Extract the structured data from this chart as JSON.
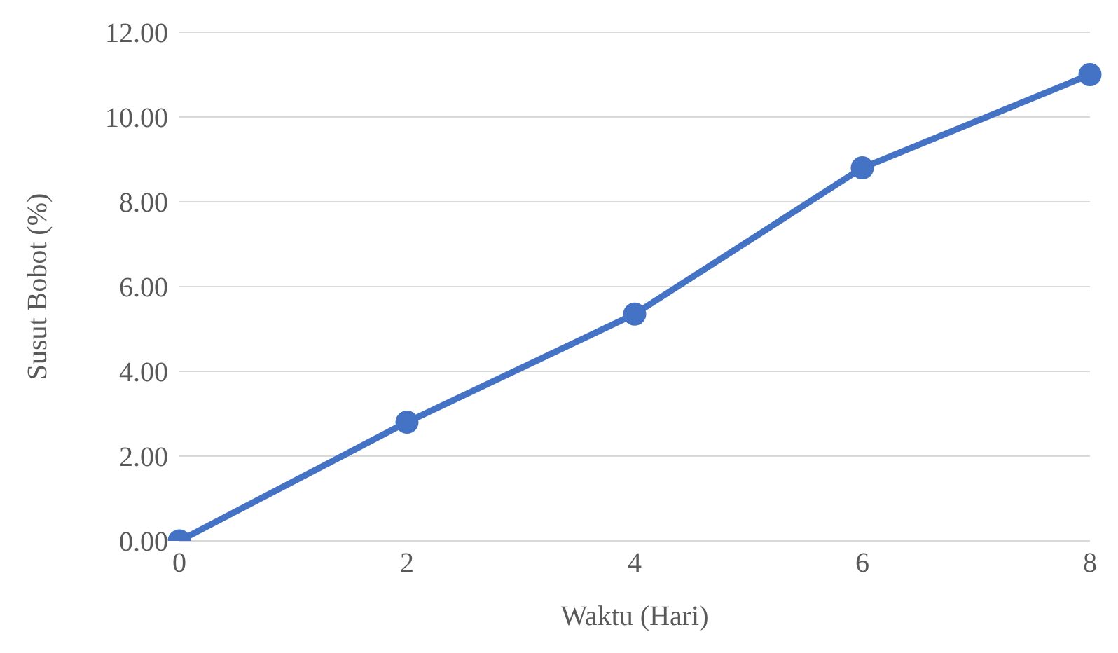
{
  "chart_data": {
    "type": "line",
    "xlabel": "Waktu (Hari)",
    "ylabel": "Susut Bobot (%)",
    "categories": [
      "0",
      "2",
      "4",
      "6",
      "8"
    ],
    "series": [
      {
        "color": "#4472c4",
        "values": [
          0,
          2.8,
          5.35,
          8.8,
          11.0
        ]
      }
    ],
    "ylim": [
      0,
      12
    ],
    "yticks": [
      {
        "value": 0,
        "label": "0.00"
      },
      {
        "value": 2,
        "label": "2.00"
      },
      {
        "value": 4,
        "label": "4.00"
      },
      {
        "value": 6,
        "label": "6.00"
      },
      {
        "value": 8,
        "label": "8.00"
      },
      {
        "value": 10,
        "label": "10.00"
      },
      {
        "value": 12,
        "label": "12.00"
      }
    ],
    "grid": "y",
    "marker": "circle",
    "line_style": "solid",
    "legend": false
  }
}
